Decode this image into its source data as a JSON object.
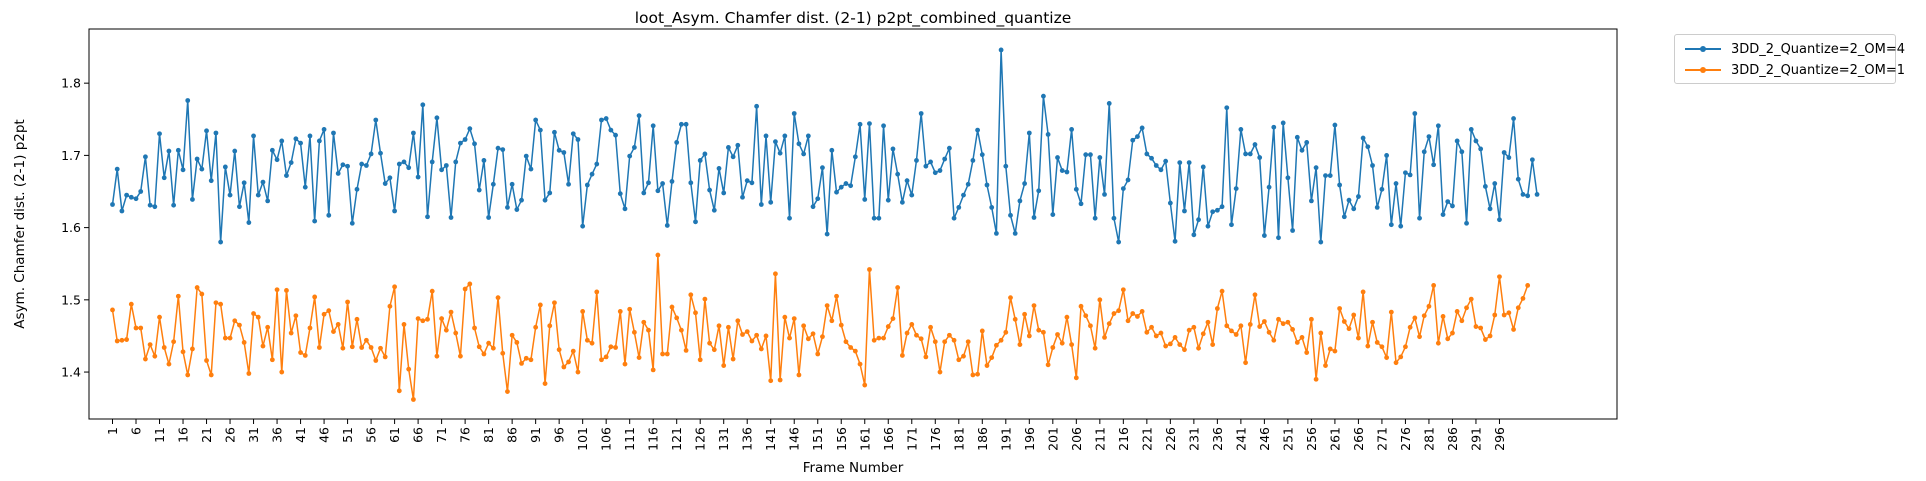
{
  "chart_data": {
    "type": "line",
    "title": "loot_Asym. Chamfer dist. (2-1) p2pt_combined_quantize",
    "xlabel": "Frame Number",
    "ylabel": "Asym. Chamfer dist. (2-1) p2pt",
    "xlim": [
      -4,
      321
    ],
    "ylim": [
      1.335,
      1.875
    ],
    "y_ticks": [
      "1.4",
      "1.5",
      "1.6",
      "1.7",
      "1.8"
    ],
    "x_ticks": [
      1,
      6,
      11,
      16,
      21,
      26,
      31,
      36,
      41,
      46,
      51,
      56,
      61,
      66,
      71,
      76,
      81,
      86,
      91,
      96,
      101,
      106,
      111,
      116,
      121,
      126,
      131,
      136,
      141,
      146,
      151,
      156,
      161,
      166,
      171,
      176,
      181,
      186,
      191,
      196,
      201,
      206,
      211,
      216,
      221,
      226,
      231,
      236,
      241,
      246,
      251,
      256,
      261,
      266,
      271,
      276,
      281,
      286,
      291,
      296
    ],
    "x_start": 1,
    "x_end": 301,
    "grid": false,
    "legend_position": "upper-right-outside",
    "series": [
      {
        "name": "3DD_2_Quantize=2_OM=4",
        "color": "#1f77b4",
        "values": [
          1.632,
          1.681,
          1.623,
          1.645,
          1.642,
          1.64,
          1.65,
          1.698,
          1.631,
          1.629,
          1.73,
          1.669,
          1.706,
          1.631,
          1.707,
          1.68,
          1.776,
          1.639,
          1.695,
          1.681,
          1.734,
          1.665,
          1.731,
          1.58,
          1.684,
          1.645,
          1.706,
          1.629,
          1.662,
          1.607,
          1.727,
          1.645,
          1.663,
          1.637,
          1.707,
          1.694,
          1.72,
          1.672,
          1.69,
          1.723,
          1.717,
          1.656,
          1.727,
          1.609,
          1.72,
          1.736,
          1.617,
          1.731,
          1.675,
          1.687,
          1.685,
          1.606,
          1.653,
          1.688,
          1.686,
          1.702,
          1.749,
          1.703,
          1.661,
          1.669,
          1.623,
          1.688,
          1.691,
          1.683,
          1.731,
          1.67,
          1.77,
          1.615,
          1.691,
          1.752,
          1.68,
          1.686,
          1.614,
          1.691,
          1.717,
          1.722,
          1.737,
          1.716,
          1.652,
          1.693,
          1.614,
          1.66,
          1.71,
          1.708,
          1.628,
          1.66,
          1.625,
          1.638,
          1.699,
          1.681,
          1.749,
          1.735,
          1.638,
          1.648,
          1.732,
          1.707,
          1.704,
          1.66,
          1.73,
          1.722,
          1.602,
          1.659,
          1.674,
          1.688,
          1.749,
          1.751,
          1.735,
          1.728,
          1.647,
          1.626,
          1.699,
          1.711,
          1.755,
          1.648,
          1.662,
          1.741,
          1.651,
          1.661,
          1.603,
          1.664,
          1.718,
          1.743,
          1.743,
          1.662,
          1.608,
          1.693,
          1.702,
          1.652,
          1.624,
          1.682,
          1.648,
          1.711,
          1.698,
          1.714,
          1.642,
          1.665,
          1.662,
          1.768,
          1.632,
          1.727,
          1.635,
          1.719,
          1.703,
          1.727,
          1.613,
          1.758,
          1.716,
          1.702,
          1.727,
          1.629,
          1.64,
          1.683,
          1.591,
          1.707,
          1.649,
          1.656,
          1.661,
          1.658,
          1.698,
          1.743,
          1.639,
          1.744,
          1.613,
          1.613,
          1.741,
          1.638,
          1.709,
          1.674,
          1.635,
          1.665,
          1.645,
          1.693,
          1.758,
          1.685,
          1.691,
          1.676,
          1.679,
          1.695,
          1.71,
          1.613,
          1.628,
          1.645,
          1.66,
          1.693,
          1.735,
          1.701,
          1.659,
          1.628,
          1.592,
          1.846,
          1.685,
          1.617,
          1.592,
          1.637,
          1.661,
          1.731,
          1.614,
          1.651,
          1.782,
          1.729,
          1.618,
          1.697,
          1.679,
          1.677,
          1.736,
          1.653,
          1.633,
          1.701,
          1.701,
          1.613,
          1.697,
          1.646,
          1.772,
          1.613,
          1.58,
          1.654,
          1.666,
          1.721,
          1.726,
          1.738,
          1.702,
          1.696,
          1.686,
          1.68,
          1.692,
          1.634,
          1.581,
          1.69,
          1.623,
          1.69,
          1.59,
          1.611,
          1.684,
          1.602,
          1.622,
          1.624,
          1.629,
          1.766,
          1.604,
          1.654,
          1.736,
          1.702,
          1.702,
          1.715,
          1.697,
          1.589,
          1.656,
          1.739,
          1.586,
          1.745,
          1.669,
          1.596,
          1.725,
          1.707,
          1.718,
          1.637,
          1.683,
          1.58,
          1.672,
          1.672,
          1.742,
          1.659,
          1.615,
          1.638,
          1.626,
          1.643,
          1.724,
          1.712,
          1.686,
          1.628,
          1.653,
          1.7,
          1.604,
          1.661,
          1.602,
          1.676,
          1.673,
          1.758,
          1.613,
          1.705,
          1.726,
          1.687,
          1.741,
          1.618,
          1.636,
          1.63,
          1.72,
          1.705,
          1.606,
          1.736,
          1.72,
          1.709,
          1.657,
          1.626,
          1.661,
          1.611,
          1.704,
          1.697,
          1.751,
          1.667,
          1.646,
          1.644,
          1.694,
          1.646
        ]
      },
      {
        "name": "3DD_2_Quantize=2_OM=1",
        "color": "#ff7f0e",
        "values": [
          1.486,
          1.443,
          1.444,
          1.445,
          1.494,
          1.461,
          1.461,
          1.418,
          1.438,
          1.422,
          1.476,
          1.434,
          1.411,
          1.442,
          1.505,
          1.428,
          1.396,
          1.432,
          1.517,
          1.508,
          1.416,
          1.396,
          1.496,
          1.494,
          1.447,
          1.447,
          1.471,
          1.465,
          1.441,
          1.398,
          1.481,
          1.476,
          1.436,
          1.462,
          1.417,
          1.514,
          1.4,
          1.513,
          1.454,
          1.478,
          1.427,
          1.423,
          1.461,
          1.504,
          1.434,
          1.48,
          1.485,
          1.456,
          1.466,
          1.433,
          1.497,
          1.435,
          1.473,
          1.434,
          1.444,
          1.434,
          1.416,
          1.433,
          1.421,
          1.491,
          1.518,
          1.374,
          1.466,
          1.404,
          1.362,
          1.474,
          1.471,
          1.473,
          1.512,
          1.422,
          1.474,
          1.458,
          1.483,
          1.454,
          1.422,
          1.515,
          1.522,
          1.461,
          1.435,
          1.425,
          1.44,
          1.433,
          1.503,
          1.426,
          1.373,
          1.451,
          1.441,
          1.412,
          1.419,
          1.417,
          1.462,
          1.493,
          1.384,
          1.464,
          1.496,
          1.431,
          1.407,
          1.414,
          1.429,
          1.4,
          1.484,
          1.444,
          1.44,
          1.511,
          1.417,
          1.421,
          1.435,
          1.434,
          1.484,
          1.411,
          1.487,
          1.455,
          1.42,
          1.469,
          1.458,
          1.403,
          1.562,
          1.425,
          1.425,
          1.49,
          1.475,
          1.458,
          1.43,
          1.507,
          1.482,
          1.417,
          1.501,
          1.44,
          1.431,
          1.464,
          1.409,
          1.462,
          1.418,
          1.471,
          1.452,
          1.456,
          1.443,
          1.451,
          1.432,
          1.45,
          1.388,
          1.536,
          1.389,
          1.476,
          1.447,
          1.474,
          1.396,
          1.464,
          1.446,
          1.453,
          1.425,
          1.449,
          1.492,
          1.471,
          1.505,
          1.465,
          1.442,
          1.434,
          1.429,
          1.411,
          1.382,
          1.542,
          1.444,
          1.447,
          1.447,
          1.463,
          1.474,
          1.517,
          1.423,
          1.454,
          1.466,
          1.451,
          1.446,
          1.421,
          1.462,
          1.442,
          1.4,
          1.442,
          1.451,
          1.444,
          1.417,
          1.422,
          1.442,
          1.396,
          1.397,
          1.457,
          1.409,
          1.42,
          1.437,
          1.444,
          1.455,
          1.503,
          1.473,
          1.438,
          1.48,
          1.45,
          1.492,
          1.458,
          1.455,
          1.41,
          1.434,
          1.452,
          1.44,
          1.476,
          1.438,
          1.392,
          1.491,
          1.478,
          1.464,
          1.433,
          1.5,
          1.448,
          1.467,
          1.481,
          1.485,
          1.514,
          1.471,
          1.481,
          1.477,
          1.484,
          1.455,
          1.462,
          1.45,
          1.454,
          1.436,
          1.439,
          1.448,
          1.438,
          1.431,
          1.458,
          1.462,
          1.433,
          1.453,
          1.469,
          1.438,
          1.488,
          1.512,
          1.464,
          1.457,
          1.452,
          1.464,
          1.413,
          1.466,
          1.507,
          1.463,
          1.47,
          1.455,
          1.444,
          1.473,
          1.467,
          1.469,
          1.459,
          1.441,
          1.448,
          1.427,
          1.473,
          1.39,
          1.454,
          1.409,
          1.432,
          1.429,
          1.488,
          1.47,
          1.46,
          1.479,
          1.447,
          1.511,
          1.436,
          1.469,
          1.441,
          1.435,
          1.42,
          1.483,
          1.413,
          1.421,
          1.435,
          1.462,
          1.475,
          1.449,
          1.478,
          1.491,
          1.52,
          1.44,
          1.477,
          1.446,
          1.454,
          1.484,
          1.471,
          1.489,
          1.501,
          1.463,
          1.461,
          1.445,
          1.45,
          1.479,
          1.532,
          1.479,
          1.482,
          1.459,
          1.489,
          1.502,
          1.52
        ]
      }
    ]
  }
}
